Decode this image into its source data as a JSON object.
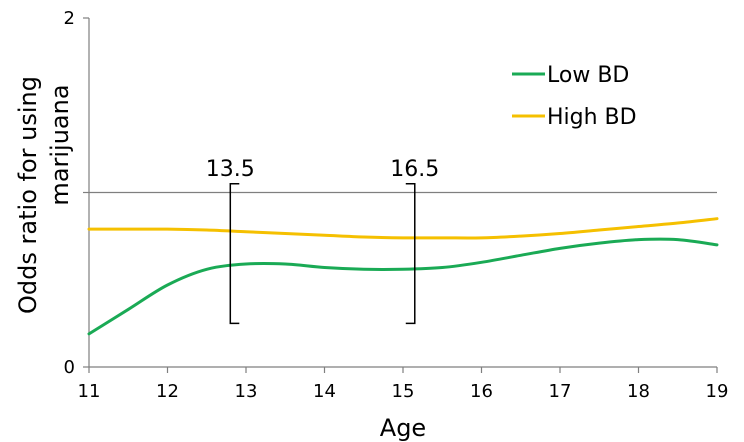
{
  "chart_data": {
    "type": "line",
    "title": "",
    "xlabel": "Age",
    "ylabel_lines": [
      "Odds ratio for using",
      "marijuana"
    ],
    "xlim": [
      11,
      19
    ],
    "ylim": [
      0,
      2
    ],
    "x_ticks": [
      11,
      12,
      13,
      14,
      15,
      16,
      17,
      18,
      19
    ],
    "x_tick_labels": [
      "11",
      "12",
      "13",
      "14",
      "15",
      "16",
      "17",
      "18",
      "19"
    ],
    "y_ticks": [
      0,
      1,
      2
    ],
    "y_tick_labels": [
      "0",
      "",
      "2"
    ],
    "reference_line": 1,
    "grid": false,
    "legend_position": "top-right",
    "series": [
      {
        "name": "Low BD",
        "color": "#1aaa55",
        "x": [
          11,
          11.5,
          12,
          12.5,
          13,
          13.5,
          14,
          14.5,
          15,
          15.5,
          16,
          16.5,
          17,
          17.5,
          18,
          18.5,
          19
        ],
        "y": [
          0.19,
          0.33,
          0.47,
          0.56,
          0.59,
          0.59,
          0.57,
          0.56,
          0.56,
          0.57,
          0.6,
          0.64,
          0.68,
          0.71,
          0.73,
          0.73,
          0.7
        ]
      },
      {
        "name": "High BD",
        "color": "#f5c000",
        "x": [
          11,
          11.5,
          12,
          12.5,
          13,
          13.5,
          14,
          14.5,
          15,
          15.5,
          16,
          16.5,
          17,
          17.5,
          18,
          18.5,
          19
        ],
        "y": [
          0.79,
          0.79,
          0.79,
          0.785,
          0.775,
          0.765,
          0.755,
          0.745,
          0.74,
          0.74,
          0.74,
          0.75,
          0.765,
          0.785,
          0.805,
          0.825,
          0.85
        ]
      }
    ],
    "annotations": [
      {
        "text": "13.5",
        "x": 12.8,
        "bracket": "left",
        "y_range": [
          0.25,
          1.05
        ]
      },
      {
        "text": "16.5",
        "x": 15.15,
        "bracket": "right",
        "y_range": [
          0.25,
          1.05
        ]
      }
    ]
  }
}
